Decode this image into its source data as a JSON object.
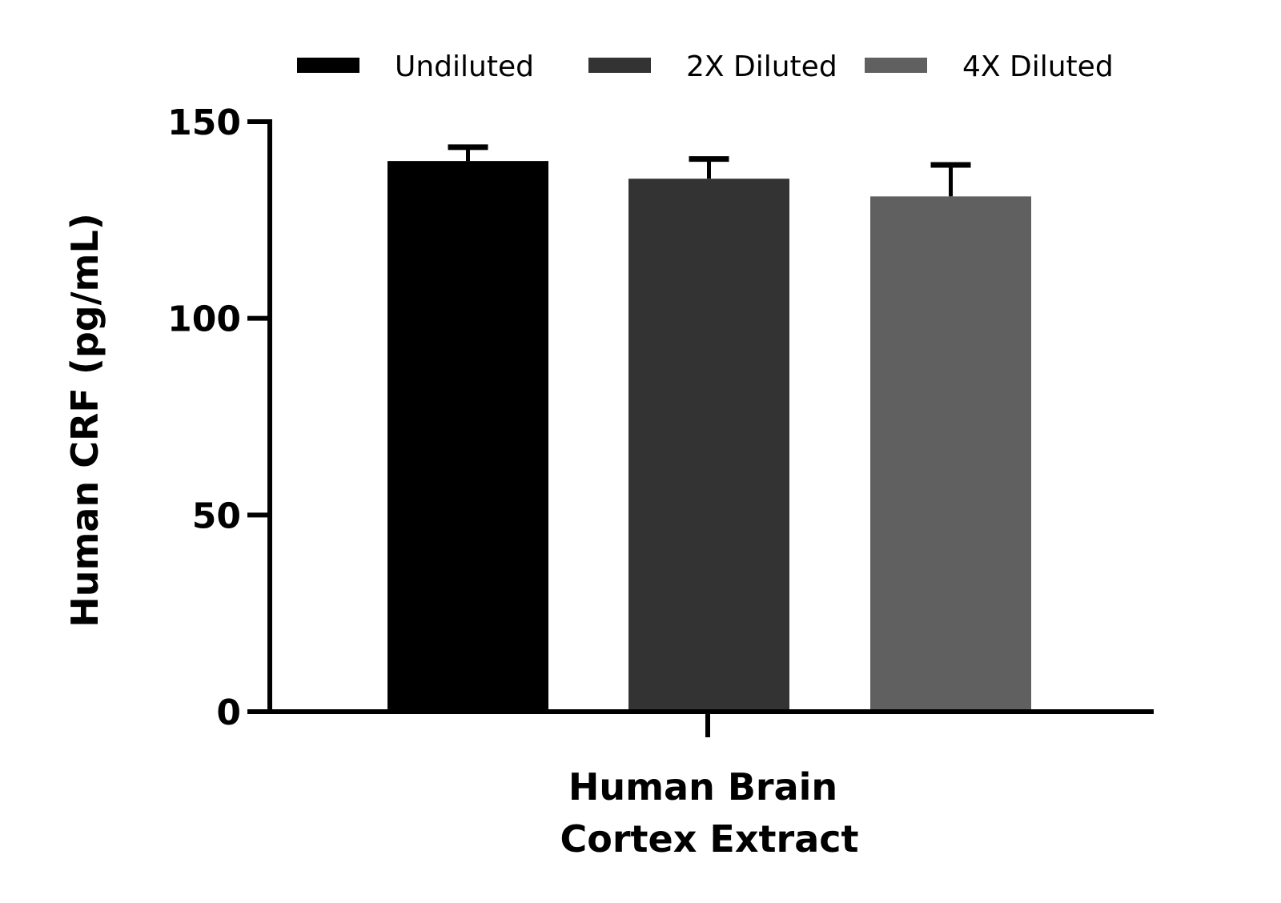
{
  "chart_data": {
    "type": "bar",
    "title": "",
    "xlabel": [
      "Human Brain",
      "Cortex Extract"
    ],
    "ylabel": "Human CRF (pg/mL)",
    "ylim": [
      0,
      150
    ],
    "yticks": [
      0,
      50,
      100,
      150
    ],
    "categories": [
      "Human Brain Cortex Extract"
    ],
    "legend_position": "top",
    "series": [
      {
        "name": "Undiluted",
        "values": [
          140
        ],
        "error": [
          3.5
        ],
        "color": "#000000"
      },
      {
        "name": "2X Diluted",
        "values": [
          135.5
        ],
        "error": [
          5
        ],
        "color": "#333333"
      },
      {
        "name": "4X Diluted",
        "values": [
          131
        ],
        "error": [
          8
        ],
        "color": "#606060"
      }
    ]
  }
}
